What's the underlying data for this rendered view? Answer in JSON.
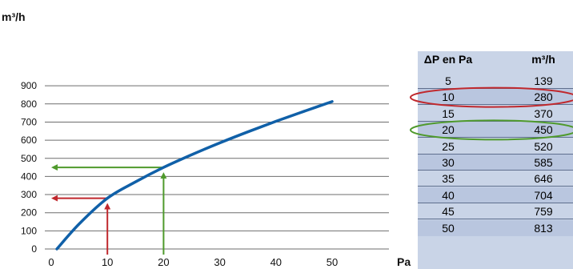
{
  "chart_data": {
    "type": "line",
    "y_unit_label": "m³/h",
    "x_unit_label": "Pa",
    "xlim": [
      0,
      50
    ],
    "ylim": [
      0,
      900
    ],
    "x_ticks": [
      "0",
      "10",
      "20",
      "30",
      "40",
      "50"
    ],
    "y_ticks": [
      "0",
      "100",
      "200",
      "300",
      "400",
      "500",
      "600",
      "700",
      "800",
      "900"
    ],
    "grid": "horizontal",
    "series": [
      {
        "color": "#1060a8",
        "x": [
          1,
          5,
          10,
          15,
          20,
          25,
          30,
          35,
          40,
          45,
          50
        ],
        "y": [
          0,
          139,
          280,
          370,
          450,
          520,
          585,
          646,
          704,
          759,
          813
        ]
      }
    ],
    "annotations": [
      {
        "color": "#c0282d",
        "x": 10,
        "y": 280
      },
      {
        "color": "#4f9a2c",
        "x": 20,
        "y": 450
      }
    ]
  },
  "table": {
    "headers": [
      "ΔP en Pa",
      "m³/h"
    ],
    "rows": [
      [
        "5",
        "139"
      ],
      [
        "10",
        "280"
      ],
      [
        "15",
        "370"
      ],
      [
        "20",
        "450"
      ],
      [
        "25",
        "520"
      ],
      [
        "30",
        "585"
      ],
      [
        "35",
        "646"
      ],
      [
        "40",
        "704"
      ],
      [
        "45",
        "759"
      ],
      [
        "50",
        "813"
      ]
    ],
    "highlights": [
      {
        "row_value": "10",
        "color": "#c0282d"
      },
      {
        "row_value": "20",
        "color": "#4f9a2c"
      }
    ]
  }
}
